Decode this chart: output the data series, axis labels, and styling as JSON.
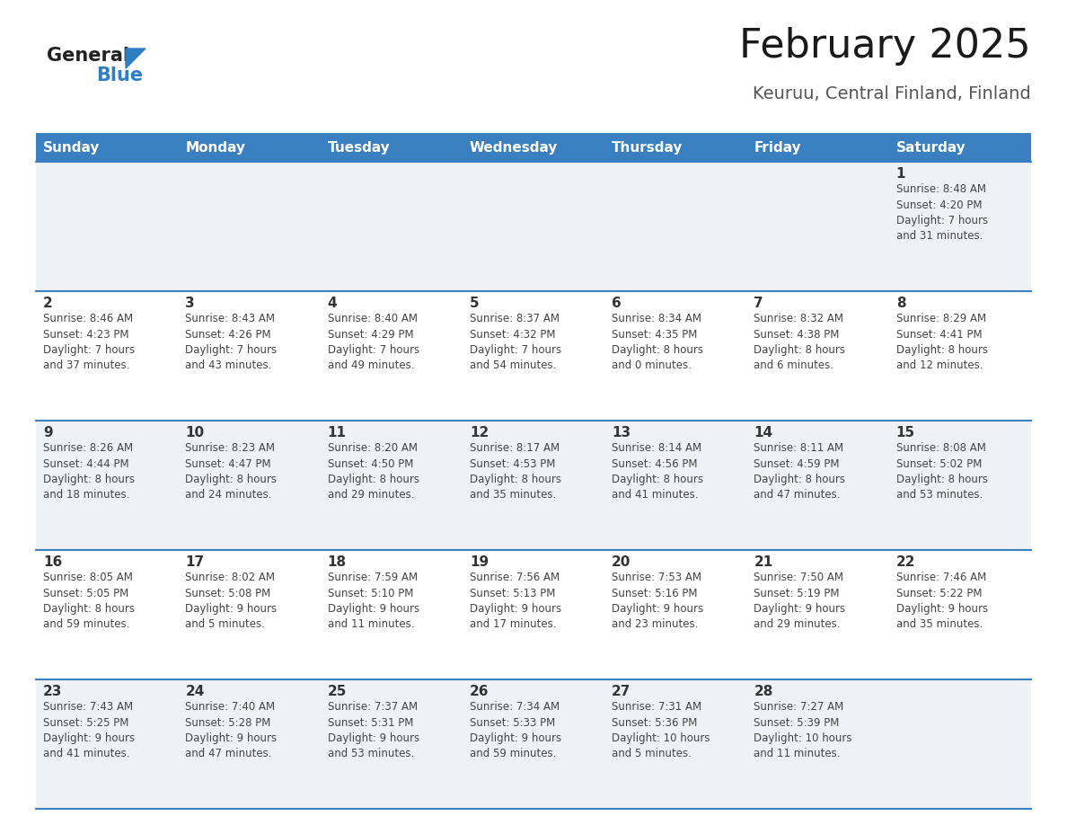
{
  "title": "February 2025",
  "subtitle": "Keuruu, Central Finland, Finland",
  "header_bg": "#3a7fbf",
  "header_text_color": "#ffffff",
  "cell_bg_light": "#eef2f7",
  "cell_bg_white": "#ffffff",
  "border_color": "#3a7fbf",
  "day_headers": [
    "Sunday",
    "Monday",
    "Tuesday",
    "Wednesday",
    "Thursday",
    "Friday",
    "Saturday"
  ],
  "weeks": [
    [
      {
        "day": null,
        "info": null
      },
      {
        "day": null,
        "info": null
      },
      {
        "day": null,
        "info": null
      },
      {
        "day": null,
        "info": null
      },
      {
        "day": null,
        "info": null
      },
      {
        "day": null,
        "info": null
      },
      {
        "day": "1",
        "info": "Sunrise: 8:48 AM\nSunset: 4:20 PM\nDaylight: 7 hours\nand 31 minutes."
      }
    ],
    [
      {
        "day": "2",
        "info": "Sunrise: 8:46 AM\nSunset: 4:23 PM\nDaylight: 7 hours\nand 37 minutes."
      },
      {
        "day": "3",
        "info": "Sunrise: 8:43 AM\nSunset: 4:26 PM\nDaylight: 7 hours\nand 43 minutes."
      },
      {
        "day": "4",
        "info": "Sunrise: 8:40 AM\nSunset: 4:29 PM\nDaylight: 7 hours\nand 49 minutes."
      },
      {
        "day": "5",
        "info": "Sunrise: 8:37 AM\nSunset: 4:32 PM\nDaylight: 7 hours\nand 54 minutes."
      },
      {
        "day": "6",
        "info": "Sunrise: 8:34 AM\nSunset: 4:35 PM\nDaylight: 8 hours\nand 0 minutes."
      },
      {
        "day": "7",
        "info": "Sunrise: 8:32 AM\nSunset: 4:38 PM\nDaylight: 8 hours\nand 6 minutes."
      },
      {
        "day": "8",
        "info": "Sunrise: 8:29 AM\nSunset: 4:41 PM\nDaylight: 8 hours\nand 12 minutes."
      }
    ],
    [
      {
        "day": "9",
        "info": "Sunrise: 8:26 AM\nSunset: 4:44 PM\nDaylight: 8 hours\nand 18 minutes."
      },
      {
        "day": "10",
        "info": "Sunrise: 8:23 AM\nSunset: 4:47 PM\nDaylight: 8 hours\nand 24 minutes."
      },
      {
        "day": "11",
        "info": "Sunrise: 8:20 AM\nSunset: 4:50 PM\nDaylight: 8 hours\nand 29 minutes."
      },
      {
        "day": "12",
        "info": "Sunrise: 8:17 AM\nSunset: 4:53 PM\nDaylight: 8 hours\nand 35 minutes."
      },
      {
        "day": "13",
        "info": "Sunrise: 8:14 AM\nSunset: 4:56 PM\nDaylight: 8 hours\nand 41 minutes."
      },
      {
        "day": "14",
        "info": "Sunrise: 8:11 AM\nSunset: 4:59 PM\nDaylight: 8 hours\nand 47 minutes."
      },
      {
        "day": "15",
        "info": "Sunrise: 8:08 AM\nSunset: 5:02 PM\nDaylight: 8 hours\nand 53 minutes."
      }
    ],
    [
      {
        "day": "16",
        "info": "Sunrise: 8:05 AM\nSunset: 5:05 PM\nDaylight: 8 hours\nand 59 minutes."
      },
      {
        "day": "17",
        "info": "Sunrise: 8:02 AM\nSunset: 5:08 PM\nDaylight: 9 hours\nand 5 minutes."
      },
      {
        "day": "18",
        "info": "Sunrise: 7:59 AM\nSunset: 5:10 PM\nDaylight: 9 hours\nand 11 minutes."
      },
      {
        "day": "19",
        "info": "Sunrise: 7:56 AM\nSunset: 5:13 PM\nDaylight: 9 hours\nand 17 minutes."
      },
      {
        "day": "20",
        "info": "Sunrise: 7:53 AM\nSunset: 5:16 PM\nDaylight: 9 hours\nand 23 minutes."
      },
      {
        "day": "21",
        "info": "Sunrise: 7:50 AM\nSunset: 5:19 PM\nDaylight: 9 hours\nand 29 minutes."
      },
      {
        "day": "22",
        "info": "Sunrise: 7:46 AM\nSunset: 5:22 PM\nDaylight: 9 hours\nand 35 minutes."
      }
    ],
    [
      {
        "day": "23",
        "info": "Sunrise: 7:43 AM\nSunset: 5:25 PM\nDaylight: 9 hours\nand 41 minutes."
      },
      {
        "day": "24",
        "info": "Sunrise: 7:40 AM\nSunset: 5:28 PM\nDaylight: 9 hours\nand 47 minutes."
      },
      {
        "day": "25",
        "info": "Sunrise: 7:37 AM\nSunset: 5:31 PM\nDaylight: 9 hours\nand 53 minutes."
      },
      {
        "day": "26",
        "info": "Sunrise: 7:34 AM\nSunset: 5:33 PM\nDaylight: 9 hours\nand 59 minutes."
      },
      {
        "day": "27",
        "info": "Sunrise: 7:31 AM\nSunset: 5:36 PM\nDaylight: 10 hours\nand 5 minutes."
      },
      {
        "day": "28",
        "info": "Sunrise: 7:27 AM\nSunset: 5:39 PM\nDaylight: 10 hours\nand 11 minutes."
      },
      {
        "day": null,
        "info": null
      }
    ]
  ],
  "logo_color_general": "#222222",
  "logo_color_blue": "#2e7ec4",
  "logo_triangle_color": "#2e7ec4",
  "title_color": "#1a1a1a",
  "subtitle_color": "#555555",
  "day_number_color": "#333333",
  "info_text_color": "#444444",
  "title_fontsize": 32,
  "subtitle_fontsize": 14,
  "header_fontsize": 11,
  "day_number_fontsize": 11,
  "info_fontsize": 8.5
}
